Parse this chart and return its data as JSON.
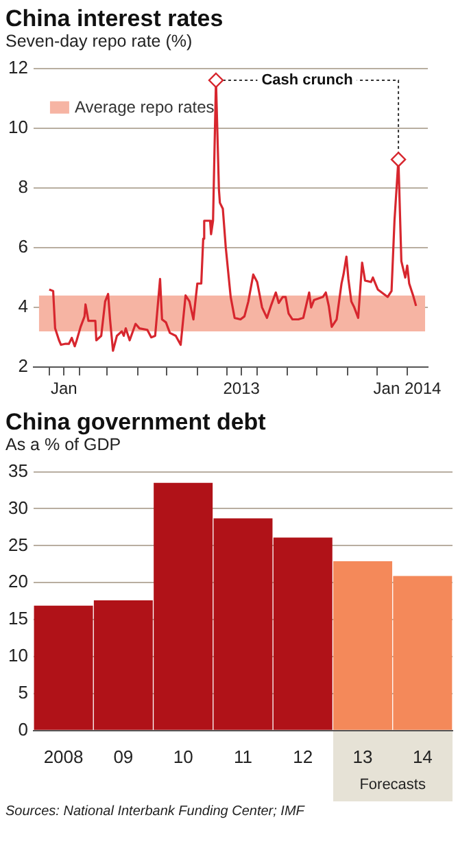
{
  "chart_data": [
    {
      "type": "line",
      "title": "China interest rates",
      "subtitle": "Seven-day repo rate (%)",
      "x": [
        "2013-01-01",
        "2013-01-05",
        "2013-01-07",
        "2013-01-11",
        "2013-01-13",
        "2013-01-17",
        "2013-01-21",
        "2013-01-24",
        "2013-01-27",
        "2013-01-29",
        "2013-02-02",
        "2013-02-06",
        "2013-02-07",
        "2013-02-10",
        "2013-02-17",
        "2013-02-18",
        "2013-02-23",
        "2013-02-27",
        "2013-03-02",
        "2013-03-04",
        "2013-03-07",
        "2013-03-11",
        "2013-03-16",
        "2013-03-18",
        "2013-03-20",
        "2013-03-24",
        "2013-03-30",
        "2013-04-03",
        "2013-04-11",
        "2013-04-15",
        "2013-04-19",
        "2013-04-24",
        "2013-04-26",
        "2013-04-30",
        "2013-05-04",
        "2013-05-10",
        "2013-05-15",
        "2013-05-20",
        "2013-05-24",
        "2013-05-28",
        "2013-06-01",
        "2013-06-05",
        "2013-06-07",
        "2013-06-08",
        "2013-06-14",
        "2013-06-15",
        "2013-06-17",
        "2013-06-20",
        "2013-06-23",
        "2013-06-24",
        "2013-06-27",
        "2013-06-30",
        "2013-07-05",
        "2013-07-09",
        "2013-07-15",
        "2013-07-19",
        "2013-07-23",
        "2013-07-28",
        "2013-08-01",
        "2013-08-06",
        "2013-08-11",
        "2013-08-15",
        "2013-08-20",
        "2013-08-23",
        "2013-08-27",
        "2013-08-30",
        "2013-09-02",
        "2013-09-06",
        "2013-09-12",
        "2013-09-17",
        "2013-09-23",
        "2013-09-25",
        "2013-09-28",
        "2013-10-07",
        "2013-10-10",
        "2013-10-13",
        "2013-10-16",
        "2013-10-21",
        "2013-10-26",
        "2013-10-28",
        "2013-10-31",
        "2013-11-02",
        "2013-11-05",
        "2013-11-08",
        "2013-11-12",
        "2013-11-16",
        "2013-11-19",
        "2013-11-25",
        "2013-11-27",
        "2013-12-02",
        "2013-12-12",
        "2013-12-16",
        "2013-12-19",
        "2013-12-23",
        "2013-12-26",
        "2013-12-30",
        "2014-01-01",
        "2014-01-03",
        "2014-01-07",
        "2014-01-10"
      ],
      "series": [
        {
          "color": "#d7262e",
          "values": [
            4.6,
            4.55,
            3.3,
            2.9,
            2.75,
            2.78,
            2.78,
            2.98,
            2.7,
            2.9,
            3.35,
            3.7,
            4.1,
            3.55,
            3.55,
            2.9,
            3.05,
            4.2,
            4.45,
            3.6,
            2.55,
            3.05,
            3.2,
            3.05,
            3.3,
            2.9,
            3.45,
            3.3,
            3.25,
            3.0,
            3.05,
            4.95,
            3.6,
            3.5,
            3.15,
            3.05,
            2.75,
            4.4,
            4.2,
            3.6,
            4.8,
            4.8,
            6.3,
            6.9,
            6.9,
            6.45,
            6.9,
            11.6,
            7.95,
            7.5,
            7.3,
            6.0,
            4.35,
            3.65,
            3.6,
            3.7,
            4.2,
            5.1,
            4.85,
            4.0,
            3.65,
            4.05,
            4.5,
            4.15,
            4.35,
            4.35,
            3.8,
            3.6,
            3.6,
            3.65,
            4.5,
            4.0,
            4.25,
            4.35,
            4.5,
            4.05,
            3.35,
            3.6,
            4.8,
            5.1,
            5.7,
            4.95,
            4.2,
            4.0,
            3.65,
            5.5,
            4.9,
            4.85,
            5.0,
            4.6,
            4.35,
            4.55,
            6.9,
            8.95,
            5.55,
            5.0,
            5.4,
            4.8,
            4.4,
            4.05
          ]
        }
      ],
      "xlim": [
        "2012-12-16",
        "2014-01-22"
      ],
      "xticks": [
        {
          "value": "2013-01-01",
          "label": null
        },
        {
          "value": "2013-01-16",
          "label": "Jan"
        },
        {
          "value": "2013-02-01",
          "label": null
        },
        {
          "value": "2013-03-01",
          "label": null
        },
        {
          "value": "2013-04-01",
          "label": null
        },
        {
          "value": "2013-05-01",
          "label": null
        },
        {
          "value": "2013-06-01",
          "label": null
        },
        {
          "value": "2013-07-01",
          "label": null
        },
        {
          "value": "2013-07-16",
          "label": "2013"
        },
        {
          "value": "2013-08-01",
          "label": null
        },
        {
          "value": "2013-09-01",
          "label": null
        },
        {
          "value": "2013-10-01",
          "label": null
        },
        {
          "value": "2013-11-01",
          "label": null
        },
        {
          "value": "2013-12-01",
          "label": null
        },
        {
          "value": "2014-01-01",
          "label": "Jan 2014"
        }
      ],
      "ylim": [
        2,
        12
      ],
      "yticks": [
        2,
        4,
        6,
        8,
        10,
        12
      ],
      "grid": "y",
      "bands": [
        {
          "axis": "y",
          "from": 3.2,
          "to": 4.4,
          "label": "Average repo rates",
          "color": "#f6b4a3"
        }
      ],
      "annotations": [
        "Cash crunch"
      ]
    },
    {
      "type": "bar",
      "title": "China government debt",
      "subtitle": "As a % of GDP",
      "categories": [
        "2008",
        "09",
        "10",
        "11",
        "12",
        "13",
        "14"
      ],
      "values": [
        16.9,
        17.6,
        33.5,
        28.7,
        26.1,
        22.9,
        20.9
      ],
      "colors": [
        "#b01218",
        "#b01218",
        "#b01218",
        "#b01218",
        "#b01218",
        "#f4895a",
        "#f4895a"
      ],
      "ylim": [
        0,
        35
      ],
      "yticks": [
        0,
        5,
        10,
        15,
        20,
        25,
        30,
        35
      ],
      "grid": "y",
      "annotations": [
        "Forecasts",
        "Sources: National Interbank Funding Center; IMF"
      ]
    }
  ]
}
